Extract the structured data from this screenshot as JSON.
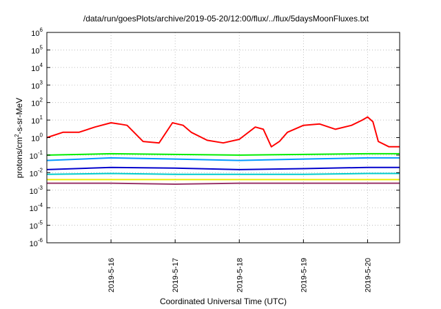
{
  "chart_data": {
    "type": "line",
    "title": "/data/run/goesPlots/archive/2019-05-20/12:00/flux/../flux/5daysMoonFluxes.txt",
    "xlabel": "Coordinated Universal Time (UTC)",
    "ylabel": {
      "prefix": "protons/cm",
      "superscript": "2",
      "suffix": "-s-sr-MeV"
    },
    "x_range_days": [
      "2019-05-15 00:00",
      "2019-05-20 12:00"
    ],
    "x_ticks": [
      "2019-5-16",
      "2019-5-17",
      "2019-5-18",
      "2019-5-19",
      "2019-5-20"
    ],
    "y_scale": "log",
    "ylim": [
      1e-06,
      1000000.0
    ],
    "y_tick_exponents": [
      "-6",
      "-5",
      "-4",
      "-3",
      "-2",
      "-1",
      "0",
      "1",
      "2",
      "3",
      "4",
      "5",
      "6"
    ],
    "y_tick_base": "10",
    "grid": true,
    "series": [
      {
        "color": "#ff0000",
        "x": [
          "2019-05-15 00:00",
          "2019-05-15 06:00",
          "2019-05-15 12:00",
          "2019-05-15 18:00",
          "2019-05-16 00:00",
          "2019-05-16 03:00",
          "2019-05-16 06:00",
          "2019-05-16 12:00",
          "2019-05-16 18:00",
          "2019-05-16 23:00",
          "2019-05-17 03:00",
          "2019-05-17 06:00",
          "2019-05-17 12:00",
          "2019-05-17 18:00",
          "2019-05-18 00:00",
          "2019-05-18 06:00",
          "2019-05-18 09:00",
          "2019-05-18 12:00",
          "2019-05-18 15:00",
          "2019-05-18 18:00",
          "2019-05-19 00:00",
          "2019-05-19 06:00",
          "2019-05-19 12:00",
          "2019-05-19 18:00",
          "2019-05-19 22:00",
          "2019-05-20 00:00",
          "2019-05-20 02:00",
          "2019-05-20 04:00",
          "2019-05-20 08:00",
          "2019-05-20 12:00"
        ],
        "y": [
          1,
          2,
          2,
          4,
          7,
          6,
          5,
          0.6,
          0.5,
          7,
          5,
          2,
          0.7,
          0.5,
          0.8,
          4,
          3,
          0.3,
          0.6,
          2,
          5,
          6,
          3,
          5,
          10,
          15,
          8,
          0.6,
          0.3,
          0.3
        ]
      },
      {
        "color": "#00ee00",
        "x": [
          "2019-05-15 00:00",
          "2019-05-16 00:00",
          "2019-05-17 00:00",
          "2019-05-18 00:00",
          "2019-05-19 00:00",
          "2019-05-20 00:00",
          "2019-05-20 12:00"
        ],
        "y": [
          0.1,
          0.12,
          0.11,
          0.1,
          0.11,
          0.12,
          0.12
        ]
      },
      {
        "color": "#0099ff",
        "x": [
          "2019-05-15 00:00",
          "2019-05-16 00:00",
          "2019-05-17 00:00",
          "2019-05-18 00:00",
          "2019-05-19 00:00",
          "2019-05-20 00:00",
          "2019-05-20 12:00"
        ],
        "y": [
          0.05,
          0.07,
          0.06,
          0.05,
          0.06,
          0.07,
          0.07
        ]
      },
      {
        "color": "#0000cc",
        "x": [
          "2019-05-15 00:00",
          "2019-05-16 00:00",
          "2019-05-17 00:00",
          "2019-05-18 00:00",
          "2019-05-19 00:00",
          "2019-05-20 00:00",
          "2019-05-20 12:00"
        ],
        "y": [
          0.015,
          0.02,
          0.018,
          0.015,
          0.017,
          0.02,
          0.02
        ]
      },
      {
        "color": "#00cccc",
        "x": [
          "2019-05-15 00:00",
          "2019-05-16 00:00",
          "2019-05-17 00:00",
          "2019-05-18 00:00",
          "2019-05-19 00:00",
          "2019-05-20 00:00",
          "2019-05-20 12:00"
        ],
        "y": [
          0.008,
          0.009,
          0.008,
          0.008,
          0.008,
          0.009,
          0.009
        ]
      },
      {
        "color": "#eeee00",
        "x": [
          "2019-05-15 00:00",
          "2019-05-16 00:00",
          "2019-05-17 00:00",
          "2019-05-18 00:00",
          "2019-05-19 00:00",
          "2019-05-20 00:00",
          "2019-05-20 12:00"
        ],
        "y": [
          0.004,
          0.004,
          0.004,
          0.004,
          0.004,
          0.004,
          0.004
        ]
      },
      {
        "color": "#993366",
        "x": [
          "2019-05-15 00:00",
          "2019-05-16 00:00",
          "2019-05-17 00:00",
          "2019-05-18 00:00",
          "2019-05-19 00:00",
          "2019-05-20 00:00",
          "2019-05-20 12:00"
        ],
        "y": [
          0.0025,
          0.0025,
          0.0022,
          0.0025,
          0.0025,
          0.0025,
          0.0025
        ]
      }
    ]
  }
}
